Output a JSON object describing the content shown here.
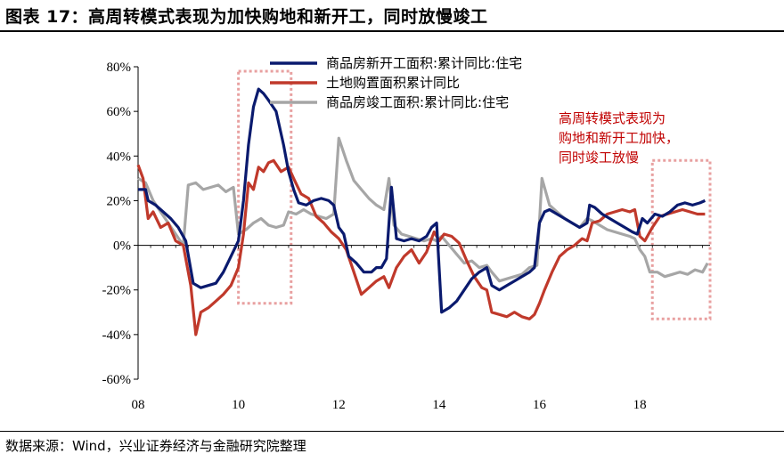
{
  "header": {
    "title": "图表 17：高周转模式表现为加快购地和新开工，同时放慢竣工"
  },
  "footer": {
    "source": "数据来源：Wind，兴业证券经济与金融研究院整理"
  },
  "chart_data": {
    "type": "line",
    "ylim": [
      -60,
      80
    ],
    "yticks": [
      80,
      60,
      40,
      20,
      0,
      -20,
      -40,
      -60
    ],
    "ytick_labels": [
      "80%",
      "60%",
      "40%",
      "20%",
      "0%",
      "-20%",
      "-40%",
      "-60%"
    ],
    "xlim": [
      2008,
      2019.4
    ],
    "xticks": [
      2008,
      2010,
      2012,
      2014,
      2016,
      2018
    ],
    "xtick_labels": [
      "08",
      "10",
      "12",
      "14",
      "16",
      "18"
    ],
    "legend_position": "top-left",
    "grid": false,
    "annotation": {
      "lines": [
        "高周转模式表现为",
        "购地和新开工加快，",
        "同时竣工放慢"
      ],
      "color": "#c00000"
    },
    "highlight_box_color": "#e8a0a0",
    "series": [
      {
        "name": "商品房新开工面积:累计同比:住宅",
        "color": "#0a1a6e",
        "points": [
          [
            2008.0,
            25
          ],
          [
            2008.15,
            25
          ],
          [
            2008.2,
            20
          ],
          [
            2008.35,
            18
          ],
          [
            2008.5,
            15
          ],
          [
            2008.65,
            12
          ],
          [
            2008.8,
            8
          ],
          [
            2008.95,
            2
          ],
          [
            2009.1,
            -17
          ],
          [
            2009.25,
            -19
          ],
          [
            2009.4,
            -18
          ],
          [
            2009.55,
            -17
          ],
          [
            2009.7,
            -12
          ],
          [
            2009.85,
            -5
          ],
          [
            2010.0,
            2
          ],
          [
            2010.1,
            20
          ],
          [
            2010.2,
            45
          ],
          [
            2010.3,
            62
          ],
          [
            2010.4,
            70
          ],
          [
            2010.5,
            68
          ],
          [
            2010.6,
            65
          ],
          [
            2010.75,
            60
          ],
          [
            2010.9,
            45
          ],
          [
            2011.0,
            33
          ],
          [
            2011.1,
            25
          ],
          [
            2011.2,
            19
          ],
          [
            2011.35,
            18
          ],
          [
            2011.5,
            20
          ],
          [
            2011.65,
            21
          ],
          [
            2011.8,
            20
          ],
          [
            2011.9,
            18
          ],
          [
            2012.0,
            8
          ],
          [
            2012.1,
            5
          ],
          [
            2012.2,
            -5
          ],
          [
            2012.35,
            -8
          ],
          [
            2012.5,
            -12
          ],
          [
            2012.65,
            -12
          ],
          [
            2012.75,
            -10
          ],
          [
            2012.85,
            -10
          ],
          [
            2012.95,
            -6
          ],
          [
            2013.05,
            26
          ],
          [
            2013.15,
            3
          ],
          [
            2013.3,
            2
          ],
          [
            2013.45,
            3
          ],
          [
            2013.6,
            2
          ],
          [
            2013.75,
            4
          ],
          [
            2013.85,
            8
          ],
          [
            2013.95,
            10
          ],
          [
            2014.05,
            -30
          ],
          [
            2014.2,
            -28
          ],
          [
            2014.35,
            -25
          ],
          [
            2014.5,
            -20
          ],
          [
            2014.65,
            -15
          ],
          [
            2014.8,
            -12
          ],
          [
            2014.95,
            -10
          ],
          [
            2015.05,
            -18
          ],
          [
            2015.2,
            -20
          ],
          [
            2015.35,
            -18
          ],
          [
            2015.5,
            -16
          ],
          [
            2015.65,
            -14
          ],
          [
            2015.8,
            -12
          ],
          [
            2015.9,
            -10
          ],
          [
            2016.0,
            10
          ],
          [
            2016.1,
            15
          ],
          [
            2016.2,
            16
          ],
          [
            2016.35,
            14
          ],
          [
            2016.5,
            12
          ],
          [
            2016.65,
            10
          ],
          [
            2016.8,
            8
          ],
          [
            2016.95,
            10
          ],
          [
            2017.0,
            18
          ],
          [
            2017.1,
            17
          ],
          [
            2017.25,
            14
          ],
          [
            2017.4,
            12
          ],
          [
            2017.55,
            10
          ],
          [
            2017.7,
            8
          ],
          [
            2017.85,
            6
          ],
          [
            2017.95,
            5
          ],
          [
            2018.05,
            12
          ],
          [
            2018.15,
            10
          ],
          [
            2018.3,
            14
          ],
          [
            2018.45,
            13
          ],
          [
            2018.6,
            15
          ],
          [
            2018.75,
            18
          ],
          [
            2018.9,
            19
          ],
          [
            2019.05,
            18
          ],
          [
            2019.2,
            19
          ],
          [
            2019.3,
            20
          ]
        ]
      },
      {
        "name": "土地购置面积累计同比",
        "color": "#c0392b",
        "points": [
          [
            2008.0,
            36
          ],
          [
            2008.1,
            30
          ],
          [
            2008.2,
            12
          ],
          [
            2008.3,
            15
          ],
          [
            2008.45,
            8
          ],
          [
            2008.6,
            10
          ],
          [
            2008.75,
            2
          ],
          [
            2008.9,
            0
          ],
          [
            2009.05,
            -18
          ],
          [
            2009.15,
            -40
          ],
          [
            2009.25,
            -30
          ],
          [
            2009.4,
            -28
          ],
          [
            2009.55,
            -25
          ],
          [
            2009.7,
            -22
          ],
          [
            2009.85,
            -18
          ],
          [
            2010.0,
            -10
          ],
          [
            2010.1,
            5
          ],
          [
            2010.2,
            28
          ],
          [
            2010.3,
            25
          ],
          [
            2010.4,
            35
          ],
          [
            2010.5,
            33
          ],
          [
            2010.6,
            37
          ],
          [
            2010.7,
            38
          ],
          [
            2010.85,
            33
          ],
          [
            2011.0,
            35
          ],
          [
            2011.1,
            30
          ],
          [
            2011.25,
            23
          ],
          [
            2011.4,
            21
          ],
          [
            2011.55,
            13
          ],
          [
            2011.7,
            10
          ],
          [
            2011.85,
            6
          ],
          [
            2012.0,
            3
          ],
          [
            2012.15,
            -2
          ],
          [
            2012.3,
            -12
          ],
          [
            2012.45,
            -22
          ],
          [
            2012.6,
            -19
          ],
          [
            2012.75,
            -16
          ],
          [
            2012.9,
            -14
          ],
          [
            2013.0,
            -19
          ],
          [
            2013.15,
            -10
          ],
          [
            2013.3,
            -5
          ],
          [
            2013.45,
            -2
          ],
          [
            2013.6,
            -8
          ],
          [
            2013.75,
            -3
          ],
          [
            2013.9,
            6
          ],
          [
            2014.0,
            2
          ],
          [
            2014.1,
            5
          ],
          [
            2014.25,
            4
          ],
          [
            2014.4,
            1
          ],
          [
            2014.55,
            -7
          ],
          [
            2014.7,
            -14
          ],
          [
            2014.85,
            -19
          ],
          [
            2014.95,
            -20
          ],
          [
            2015.05,
            -30
          ],
          [
            2015.2,
            -31
          ],
          [
            2015.35,
            -32
          ],
          [
            2015.5,
            -30
          ],
          [
            2015.65,
            -32
          ],
          [
            2015.8,
            -33
          ],
          [
            2015.9,
            -31
          ],
          [
            2016.0,
            -26
          ],
          [
            2016.1,
            -20
          ],
          [
            2016.25,
            -12
          ],
          [
            2016.4,
            -5
          ],
          [
            2016.55,
            -2
          ],
          [
            2016.7,
            0
          ],
          [
            2016.85,
            3
          ],
          [
            2016.95,
            2
          ],
          [
            2017.05,
            10
          ],
          [
            2017.2,
            11
          ],
          [
            2017.35,
            14
          ],
          [
            2017.5,
            15
          ],
          [
            2017.65,
            16
          ],
          [
            2017.8,
            15
          ],
          [
            2017.9,
            16
          ],
          [
            2018.0,
            4
          ],
          [
            2018.1,
            2
          ],
          [
            2018.25,
            8
          ],
          [
            2018.4,
            13
          ],
          [
            2018.55,
            14
          ],
          [
            2018.7,
            15
          ],
          [
            2018.85,
            16
          ],
          [
            2019.0,
            15
          ],
          [
            2019.15,
            14
          ],
          [
            2019.3,
            14
          ]
        ]
      },
      {
        "name": "商品房竣工面积:累计同比:住宅",
        "color": "#a6a6a6",
        "points": [
          [
            2008.0,
            30
          ],
          [
            2008.15,
            28
          ],
          [
            2008.3,
            20
          ],
          [
            2008.45,
            15
          ],
          [
            2008.6,
            10
          ],
          [
            2008.75,
            5
          ],
          [
            2008.9,
            0
          ],
          [
            2009.0,
            27
          ],
          [
            2009.15,
            28
          ],
          [
            2009.3,
            25
          ],
          [
            2009.45,
            26
          ],
          [
            2009.6,
            27
          ],
          [
            2009.75,
            24
          ],
          [
            2009.9,
            26
          ],
          [
            2010.0,
            5
          ],
          [
            2010.15,
            7
          ],
          [
            2010.3,
            10
          ],
          [
            2010.45,
            12
          ],
          [
            2010.6,
            9
          ],
          [
            2010.75,
            8
          ],
          [
            2010.9,
            9
          ],
          [
            2011.0,
            15
          ],
          [
            2011.15,
            14
          ],
          [
            2011.3,
            16
          ],
          [
            2011.45,
            14
          ],
          [
            2011.6,
            13
          ],
          [
            2011.75,
            12
          ],
          [
            2011.9,
            14
          ],
          [
            2012.0,
            48
          ],
          [
            2012.15,
            38
          ],
          [
            2012.3,
            29
          ],
          [
            2012.45,
            25
          ],
          [
            2012.6,
            21
          ],
          [
            2012.75,
            18
          ],
          [
            2012.9,
            16
          ],
          [
            2013.0,
            30
          ],
          [
            2013.1,
            9
          ],
          [
            2013.25,
            5
          ],
          [
            2013.4,
            4
          ],
          [
            2013.55,
            3
          ],
          [
            2013.7,
            2
          ],
          [
            2013.85,
            3
          ],
          [
            2013.95,
            2
          ],
          [
            2014.05,
            4
          ],
          [
            2014.2,
            0
          ],
          [
            2014.35,
            -4
          ],
          [
            2014.5,
            -8
          ],
          [
            2014.65,
            -7
          ],
          [
            2014.8,
            -10
          ],
          [
            2014.95,
            -9
          ],
          [
            2015.05,
            -12
          ],
          [
            2015.2,
            -16
          ],
          [
            2015.35,
            -15
          ],
          [
            2015.5,
            -14
          ],
          [
            2015.65,
            -13
          ],
          [
            2015.8,
            -10
          ],
          [
            2015.95,
            -9
          ],
          [
            2016.05,
            30
          ],
          [
            2016.2,
            18
          ],
          [
            2016.35,
            15
          ],
          [
            2016.5,
            12
          ],
          [
            2016.65,
            10
          ],
          [
            2016.8,
            8
          ],
          [
            2016.95,
            12
          ],
          [
            2017.05,
            11
          ],
          [
            2017.2,
            9
          ],
          [
            2017.35,
            7
          ],
          [
            2017.5,
            6
          ],
          [
            2017.65,
            5
          ],
          [
            2017.8,
            4
          ],
          [
            2017.9,
            3
          ],
          [
            2018.0,
            -2
          ],
          [
            2018.1,
            -5
          ],
          [
            2018.2,
            -12
          ],
          [
            2018.35,
            -12
          ],
          [
            2018.5,
            -14
          ],
          [
            2018.65,
            -13
          ],
          [
            2018.8,
            -12
          ],
          [
            2018.95,
            -13
          ],
          [
            2019.1,
            -11
          ],
          [
            2019.25,
            -12
          ],
          [
            2019.35,
            -8
          ]
        ]
      }
    ]
  }
}
